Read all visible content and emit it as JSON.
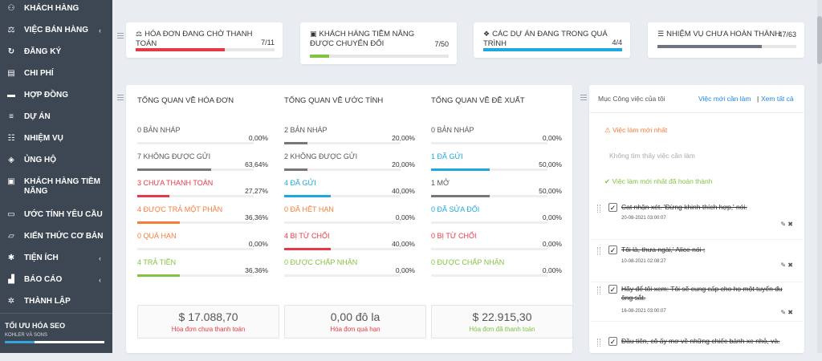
{
  "sidebar": {
    "items": [
      {
        "label": "KHÁCH HÀNG",
        "icon": "user-icon"
      },
      {
        "label": "VIỆC BÁN HÀNG",
        "icon": "balance-icon",
        "chevron": "‹"
      },
      {
        "label": "ĐĂNG KÝ",
        "icon": "refresh-icon"
      },
      {
        "label": "CHI PHÍ",
        "icon": "file-icon"
      },
      {
        "label": "HỢP ĐỒNG",
        "icon": "document-icon"
      },
      {
        "label": "DỰ ÁN",
        "icon": "bars-icon"
      },
      {
        "label": "NHIỆM VỤ",
        "icon": "tasks-icon"
      },
      {
        "label": "ỦNG HỘ",
        "icon": "ticket-icon"
      },
      {
        "label": "KHÁCH HÀNG TIỀM NĂNG",
        "icon": "lead-icon"
      },
      {
        "label": "ƯỚC TÍNH YÊU CẦU",
        "icon": "form-icon"
      },
      {
        "label": "KIẾN THỨC CƠ BẢN",
        "icon": "folder-icon"
      },
      {
        "label": "TIỆN ÍCH",
        "icon": "gear-icon",
        "chevron": "‹"
      },
      {
        "label": "BÁO CÁO",
        "icon": "chart-icon",
        "chevron": "‹"
      },
      {
        "label": "THÀNH LẬP",
        "icon": "settings-icon"
      }
    ],
    "seo_title": "TỐI ƯU HÓA SEO",
    "seo_sub": "KOHLER VÀ SONS",
    "seo_progress": 0.3
  },
  "kpis": [
    {
      "title": "HÓA ĐƠN ĐANG CHỜ THANH TOÁN",
      "value": "7/11",
      "ratio": 0.64,
      "color": "#e63946"
    },
    {
      "title": "KHÁCH HÀNG TIỀM NĂNG ĐƯỢC CHUYỂN ĐỔI",
      "value": "7/50",
      "ratio": 0.14,
      "color": "#84c341"
    },
    {
      "title": "CÁC DỰ ÁN ĐANG TRONG QUÁ TRÌNH",
      "value": "4/4",
      "ratio": 1.0,
      "color": "#1ea7e1"
    },
    {
      "title": "NHIỆM VỤ CHƯA HOÀN THÀNH",
      "value": "47/63",
      "ratio": 0.75,
      "color": "#6f7580"
    }
  ],
  "overview": [
    {
      "title": "TỔNG QUAN VỀ HÓA ĐƠN",
      "rows": [
        {
          "label": "0 BẢN NHÁP",
          "pct": "0,00%",
          "ratio": 0,
          "color": "#777"
        },
        {
          "label": "7 KHÔNG ĐƯỢC GỬI",
          "pct": "63,64%",
          "ratio": 0.6364,
          "color": "#777"
        },
        {
          "label": "3 CHƯA THANH TOÁN",
          "pct": "27,27%",
          "ratio": 0.2727,
          "color": "#e63946"
        },
        {
          "label": "4 ĐƯỢC TRẢ MỘT PHẦN",
          "pct": "36,36%",
          "ratio": 0.3636,
          "color": "#f57c3a"
        },
        {
          "label": "0 QUÁ HẠN",
          "pct": "0,00%",
          "ratio": 0,
          "color": "#f57c3a"
        },
        {
          "label": "4 TRẢ TIỀN",
          "pct": "36,36%",
          "ratio": 0.3636,
          "color": "#84c341"
        }
      ],
      "total": {
        "amount": "$ 17.088,70",
        "caption": "Hóa đơn chưa thanh toán",
        "color": "#e63946"
      }
    },
    {
      "title": "TỔNG QUAN VỀ ƯỚC TÍNH",
      "rows": [
        {
          "label": "2 BẢN NHÁP",
          "pct": "20,00%",
          "ratio": 0.2,
          "color": "#777"
        },
        {
          "label": "2 KHÔNG ĐƯỢC GỬI",
          "pct": "20,00%",
          "ratio": 0.2,
          "color": "#777"
        },
        {
          "label": "4 ĐÃ GỬI",
          "pct": "40,00%",
          "ratio": 0.4,
          "color": "#1ea7e1"
        },
        {
          "label": "0 ĐÃ HẾT HẠN",
          "pct": "0,00%",
          "ratio": 0,
          "color": "#f57c3a"
        },
        {
          "label": "4 BỊ TỪ CHỐI",
          "pct": "40,00%",
          "ratio": 0.4,
          "color": "#e63946"
        },
        {
          "label": "0 ĐƯỢC CHẤP NHẬN",
          "pct": "0,00%",
          "ratio": 0,
          "color": "#84c341"
        }
      ],
      "total": {
        "amount": "0,00 đô la",
        "caption": "Hóa đơn quá hạn",
        "color": "#e63946"
      }
    },
    {
      "title": "TỔNG QUAN VỀ ĐỀ XUẤT",
      "rows": [
        {
          "label": "0 BẢN NHÁP",
          "pct": "0,00%",
          "ratio": 0,
          "color": "#777"
        },
        {
          "label": "1 ĐÃ GỬI",
          "pct": "50,00%",
          "ratio": 0.5,
          "color": "#1ea7e1"
        },
        {
          "label": "1 MỞ",
          "pct": "50,00%",
          "ratio": 0.5,
          "color": "#777"
        },
        {
          "label": "0 ĐÃ SỬA ĐỔI",
          "pct": "0,00%",
          "ratio": 0,
          "color": "#1ea7e1"
        },
        {
          "label": "0 BỊ TỪ CHỐI",
          "pct": "0,00%",
          "ratio": 0,
          "color": "#e63946"
        },
        {
          "label": "0 ĐƯỢC CHẤP NHẬN",
          "pct": "0,00%",
          "ratio": 0,
          "color": "#84c341"
        }
      ],
      "total": {
        "amount": "$ 22.915,30",
        "caption": "Hóa đơn đã thanh toán",
        "color": "#84c341"
      }
    }
  ],
  "todo": {
    "title": "Mục Công việc của tôi",
    "new_link": "Việc mới cần làm",
    "sep": "|",
    "all_link": "Xem tất cả",
    "latest_heading": "Việc làm mới nhất",
    "empty_text": "Không tìm thấy việc cần làm",
    "done_heading": "Việc làm mới nhất đã hoàn thành",
    "items": [
      {
        "text": "Cat nhận xét. 'Đừng khinh thích hợp,' nói.",
        "date": "20-08-2021 03:00:07"
      },
      {
        "text": "Tôi là, thưa ngài,' Alice nói ;",
        "date": "10-08-2021 02:08:27"
      },
      {
        "text": "Hãy để tôi xem: Tôi sẽ cung cấp cho họ một tuyển đu ông sắt.",
        "date": "16-08-2021 03:00:07"
      },
      {
        "text": "Đầu tiên, cô ấy mơ về những chiếc bánh xe nhỏ, và.",
        "date": ""
      }
    ]
  },
  "colors": {
    "sidebar": "#3d4653",
    "link": "#1e88e5",
    "warn": "#f57c3a",
    "ok": "#84c341"
  }
}
